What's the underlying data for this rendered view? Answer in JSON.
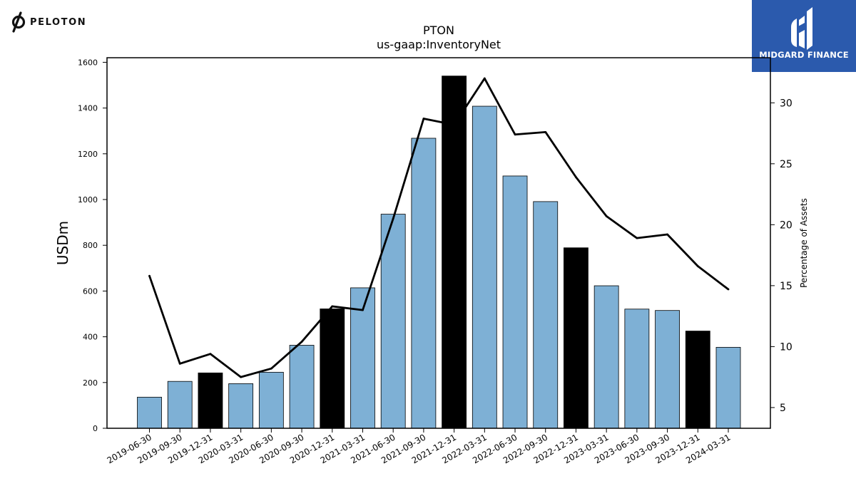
{
  "branding": {
    "left_logo_text": "PELOTON",
    "left_logo_icon": "peloton-logo-icon",
    "right_logo_text": "MIDGARD FINANCE",
    "right_logo_icon": "midgard-finance-logo-icon",
    "right_logo_bg": "#2b5aad"
  },
  "chart_data": {
    "type": "bar",
    "title": "PTON",
    "subtitle": "us-gaap:InventoryNet",
    "ylabel": "USDm",
    "y2label": "Percentage of Assets",
    "ylim": [
      0,
      1620
    ],
    "y2lim": [
      3.3,
      33.7
    ],
    "yticks": [
      0,
      200,
      400,
      600,
      800,
      1000,
      1200,
      1400,
      1600
    ],
    "y2ticks": [
      5,
      10,
      15,
      20,
      25,
      30
    ],
    "grid": false,
    "legend": "none",
    "bar_color": "#7eb0d5",
    "highlight_color": "#000000",
    "line_color": "#000000",
    "categories": [
      "2019-06-30",
      "2019-09-30",
      "2019-12-31",
      "2020-03-31",
      "2020-06-30",
      "2020-09-30",
      "2020-12-31",
      "2021-03-31",
      "2021-06-30",
      "2021-09-30",
      "2021-12-31",
      "2022-03-31",
      "2022-06-30",
      "2022-09-30",
      "2022-12-31",
      "2023-03-31",
      "2023-06-30",
      "2023-09-30",
      "2023-12-31",
      "2024-03-31"
    ],
    "series": [
      {
        "kind": "bar",
        "axis": "left",
        "values": [
          136,
          205,
          242,
          195,
          245,
          363,
          522,
          614,
          936,
          1268,
          1540,
          1408,
          1103,
          991,
          789,
          623,
          521,
          515,
          425,
          354
        ],
        "highlight": [
          false,
          false,
          true,
          false,
          false,
          false,
          true,
          false,
          false,
          false,
          true,
          false,
          false,
          false,
          true,
          false,
          false,
          false,
          true,
          false
        ]
      },
      {
        "kind": "line",
        "axis": "right",
        "values": [
          15.8,
          8.6,
          9.4,
          7.5,
          8.2,
          10.4,
          13.3,
          13.0,
          20.5,
          28.7,
          28.2,
          32.0,
          27.4,
          27.6,
          23.9,
          20.7,
          18.9,
          19.2,
          16.6,
          14.7
        ]
      }
    ]
  }
}
